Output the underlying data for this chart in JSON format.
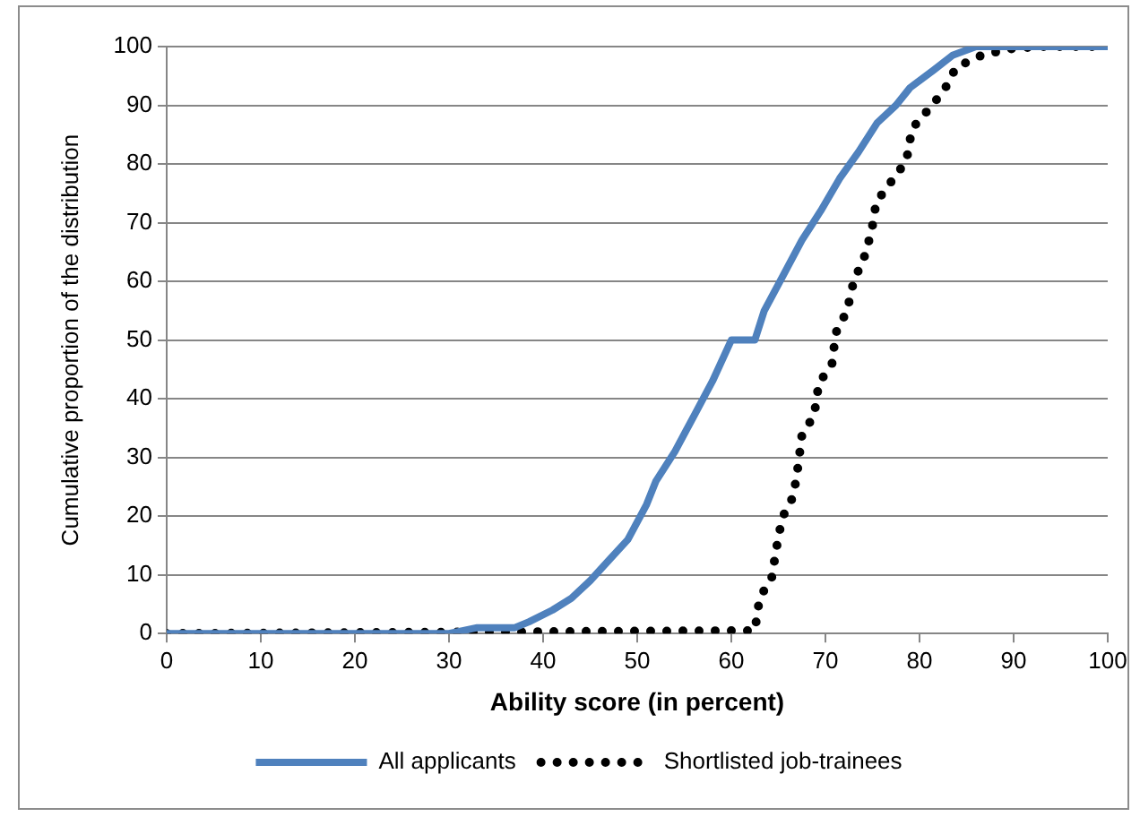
{
  "chart_data": {
    "type": "line",
    "xlabel": "Ability score (in percent)",
    "ylabel": "Cumulative proportion of the distribution",
    "xlim": [
      0,
      100
    ],
    "xticks": [
      0,
      10,
      20,
      30,
      40,
      50,
      60,
      70,
      80,
      90,
      100
    ],
    "ylim": [
      0,
      100
    ],
    "yticks": [
      0,
      10,
      20,
      30,
      40,
      50,
      60,
      70,
      80,
      90,
      100
    ],
    "grid": "y",
    "legend": "bottom",
    "marker": "none",
    "series": [
      {
        "name": "All applicants",
        "color": "#4f81bd",
        "line_style": "solid",
        "x": [
          0,
          30,
          33,
          37,
          38.5,
          41,
          43,
          45,
          47,
          49,
          51,
          52,
          54,
          56,
          58,
          60,
          62.5,
          63.5,
          65.5,
          67.5,
          69.5,
          71.5,
          73.5,
          75.5,
          77.5,
          79,
          81.5,
          83.5,
          86,
          100
        ],
        "values": [
          0,
          0,
          1,
          1,
          2,
          4,
          6,
          9,
          12.5,
          16,
          22,
          26,
          31,
          37,
          43,
          50,
          50,
          55,
          61,
          67,
          72,
          77.5,
          82,
          87,
          90,
          93,
          96,
          98.5,
          100,
          100
        ]
      },
      {
        "name": "Shortlisted job-trainees",
        "color": "#000000",
        "line_style": "dotted",
        "x": [
          0,
          62.5,
          63,
          64.3,
          64.8,
          65.4,
          66.6,
          67.1,
          67.5,
          68.8,
          69.3,
          70.7,
          71.1,
          72.3,
          73,
          74.1,
          74.9,
          75.4,
          77,
          78.6,
          79.2,
          80.8,
          82.6,
          83.9,
          86.6,
          89.5,
          92.5,
          100
        ],
        "values": [
          0,
          0.5,
          6,
          9.6,
          14.6,
          19.7,
          23.4,
          28.6,
          33.8,
          37.2,
          42.6,
          46,
          51.2,
          55,
          60,
          64,
          68.5,
          73.5,
          77,
          80.5,
          86,
          89,
          92.5,
          96.5,
          98.5,
          99.6,
          100,
          100
        ]
      }
    ]
  }
}
